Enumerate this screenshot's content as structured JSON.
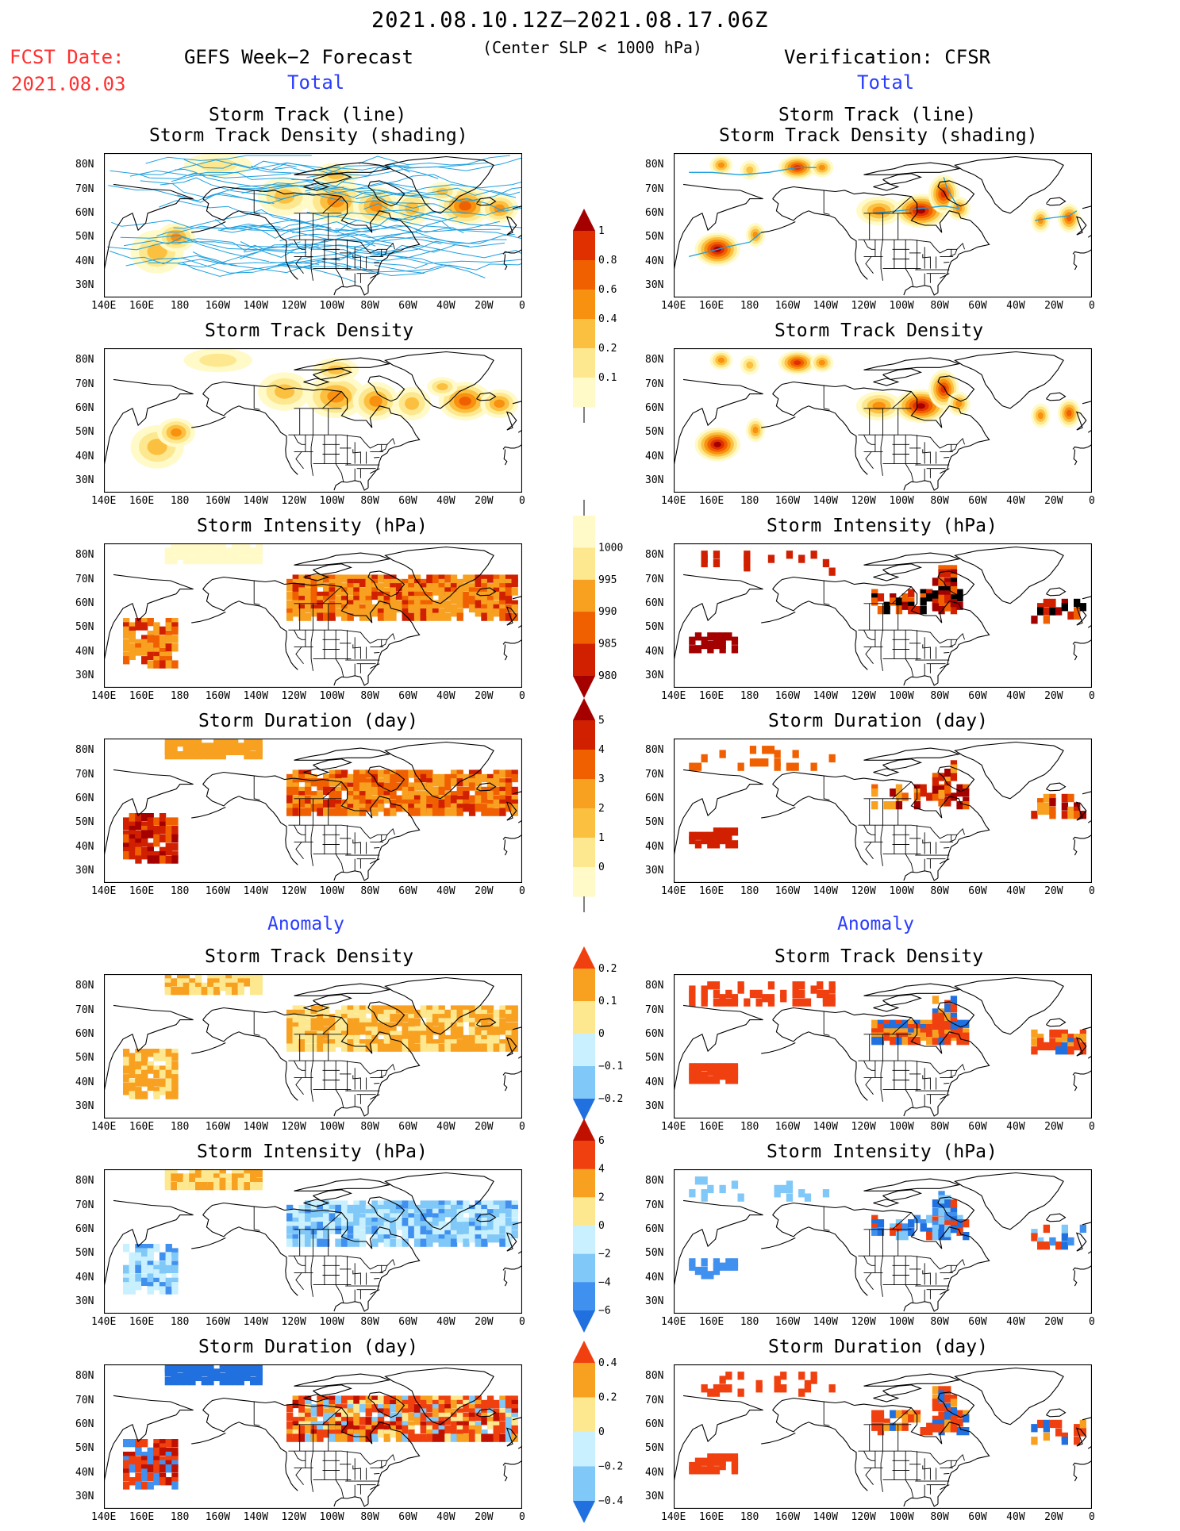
{
  "header": {
    "period": "2021.08.10.12Z–2021.08.17.06Z",
    "condition": "(Center SLP < 1000 hPa)",
    "fcst_label": "FCST Date:",
    "fcst_date": "2021.08.03",
    "left_model": "GEFS Week−2 Forecast",
    "right_model": "Verification: CFSR",
    "left_section": "Total",
    "right_section": "Total",
    "left_anomaly": "Anomaly",
    "right_anomaly": "Anomaly"
  },
  "panel_titles": {
    "track": [
      "Storm Track (line)",
      "Storm Track Density (shading)"
    ],
    "density": "Storm Track Density",
    "intensity": "Storm Intensity (hPa)",
    "duration": "Storm Duration (day)"
  },
  "axes": {
    "lat_labels": [
      "80N",
      "70N",
      "60N",
      "50N",
      "40N",
      "30N"
    ],
    "lon_labels": [
      "140E",
      "160E",
      "180",
      "160W",
      "140W",
      "120W",
      "100W",
      "80W",
      "60W",
      "40W",
      "20W",
      "0"
    ]
  },
  "colorbars": [
    {
      "id": "density",
      "labels": [
        "1",
        "0.8",
        "0.6",
        "0.4",
        "0.2",
        "0.1"
      ],
      "colors": [
        "#a50000",
        "#e03000",
        "#f06000",
        "#f89010",
        "#fcc040",
        "#fde890",
        "#fffac8"
      ]
    },
    {
      "id": "intensity",
      "labels": [
        "1000",
        "995",
        "990",
        "985",
        "980"
      ],
      "colors": [
        "#fffac8",
        "#fde890",
        "#f8a020",
        "#f06000",
        "#d02000",
        "#a50000"
      ]
    },
    {
      "id": "duration",
      "labels": [
        "5",
        "4",
        "3",
        "2",
        "1",
        "0"
      ],
      "colors": [
        "#a50000",
        "#d02000",
        "#f06000",
        "#f8a020",
        "#fcc040",
        "#fde890",
        "#fffac8"
      ]
    },
    {
      "id": "anom_density",
      "labels": [
        "0.2",
        "0.1",
        "0",
        "−0.1",
        "−0.2"
      ],
      "colors": [
        "#f04010",
        "#f8a020",
        "#fde890",
        "#c8f0ff",
        "#80c8f8",
        "#2070e0"
      ]
    },
    {
      "id": "anom_intensity",
      "labels": [
        "6",
        "4",
        "2",
        "0",
        "−2",
        "−4",
        "−6"
      ],
      "colors": [
        "#c01000",
        "#f04010",
        "#f8a020",
        "#fde890",
        "#c8f0ff",
        "#80c8f8",
        "#4090f0",
        "#2070e0"
      ]
    },
    {
      "id": "anom_duration",
      "labels": [
        "0.4",
        "0.2",
        "0",
        "−0.2",
        "−0.4"
      ],
      "colors": [
        "#f04010",
        "#f8a020",
        "#fde890",
        "#c8f0ff",
        "#80c8f8",
        "#2070e0"
      ]
    }
  ],
  "colors": {
    "track_line": "#1ea0e0",
    "coast": "#000000",
    "header_red": "#ff3030",
    "section_blue": "#2a3cff"
  }
}
